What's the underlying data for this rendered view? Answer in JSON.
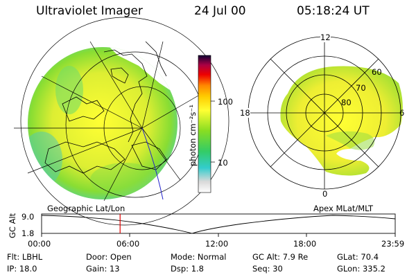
{
  "header": {
    "instrument": "Ultraviolet Imager",
    "date": "24 Jul 00",
    "time": "05:18:24 UT"
  },
  "colorbar": {
    "unit": "photon cm⁻²s⁻¹",
    "ticks": [
      "100",
      "10"
    ]
  },
  "left_panel": {
    "label": "Geographic Lat/Lon"
  },
  "right_panel": {
    "label": "Apex MLat/MLT",
    "mlt_labels": [
      "12",
      "18",
      "6",
      "0"
    ],
    "mlat_labels": [
      "60",
      "70",
      "80"
    ]
  },
  "altitude_plot": {
    "ylabel": "GC Alt",
    "yticks": [
      "9.0",
      "1.8"
    ],
    "xticks": [
      "00:00",
      "06:00",
      "12:00",
      "18:00",
      "23:59"
    ],
    "current_time_fraction": 0.222,
    "marker_color": "#e00000"
  },
  "status": {
    "rows": [
      [
        {
          "label": "Flt:",
          "value": "LBHL"
        },
        {
          "label": "Door:",
          "value": "Open"
        },
        {
          "label": "Mode:",
          "value": "Normal"
        },
        {
          "label": "GC Alt:",
          "value": "7.9 Re"
        },
        {
          "label": "GLat:",
          "value": "70.4"
        }
      ],
      [
        {
          "label": "IP:",
          "value": "18.0"
        },
        {
          "label": "Gain:",
          "value": "13"
        },
        {
          "label": "Dsp:",
          "value": "1.8"
        },
        {
          "label": "Seq:",
          "value": "30"
        },
        {
          "label": "GLon:",
          "value": "335.2"
        }
      ]
    ]
  }
}
